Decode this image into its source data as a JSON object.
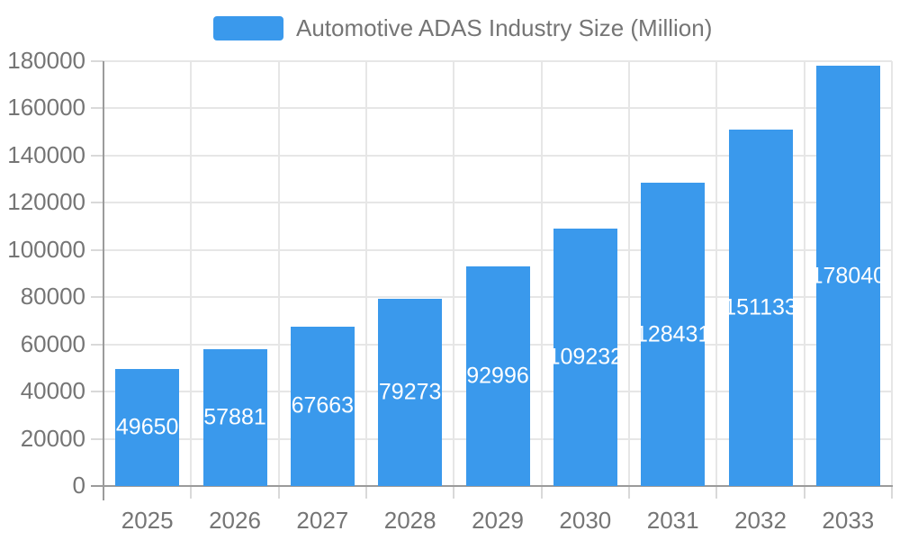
{
  "legend": {
    "label": "Automotive ADAS Industry Size (Million)"
  },
  "chart_data": {
    "type": "bar",
    "title": "Automotive ADAS Industry Size (Million)",
    "series_name": "Automotive ADAS Industry Size (Million)",
    "categories": [
      "2025",
      "2026",
      "2027",
      "2028",
      "2029",
      "2030",
      "2031",
      "2032",
      "2033"
    ],
    "values": [
      49650,
      57881,
      67663,
      79273,
      92996,
      109232,
      128431,
      151133,
      178040
    ],
    "xlabel": "",
    "ylabel": "",
    "ylim": [
      0,
      180000
    ],
    "ytick_step": 20000,
    "ytick_labels": [
      "0",
      "20000",
      "40000",
      "60000",
      "80000",
      "100000",
      "120000",
      "140000",
      "160000",
      "180000"
    ],
    "grid": true,
    "legend_position": "top-center",
    "value_labels": "inside-center-white",
    "colors": {
      "bar": "#3A99EC",
      "value_label": "#FFFFFF",
      "axis_text": "#757575",
      "gridline": "#E6E6E6",
      "tick": "#D9D9D9",
      "axis_line": "#9B9B9B",
      "background": "#FFFFFF"
    }
  }
}
